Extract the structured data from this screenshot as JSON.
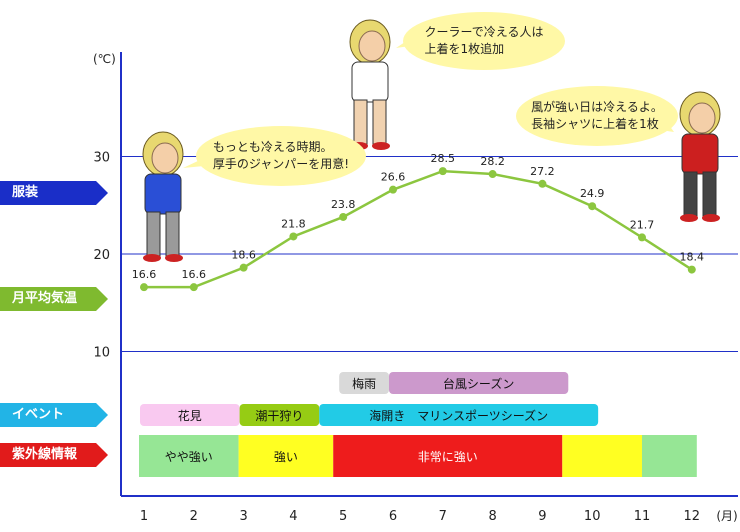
{
  "page": {
    "unit_temp": "(℃)",
    "unit_month": "(月)"
  },
  "row_labels": {
    "clothing": "服装",
    "avg_temp": "月平均気温",
    "event": "イベント",
    "uv": "紫外線情報"
  },
  "callouts": {
    "cold": "もっとも冷える時期。\n厚手のジャンパーを用意!",
    "cooler": "クーラーで冷える人は\n上着を1枚追加",
    "wind": "風が強い日は冷えるよ。\n長袖シャツに上着を1枚"
  },
  "chart_data": {
    "type": "line",
    "x": [
      1,
      2,
      3,
      4,
      5,
      6,
      7,
      8,
      9,
      10,
      11,
      12
    ],
    "values": [
      16.6,
      16.6,
      18.6,
      21.8,
      23.8,
      26.6,
      28.5,
      28.2,
      27.2,
      24.9,
      21.7,
      18.4
    ],
    "x_tick_labels": [
      "1",
      "2",
      "3",
      "4",
      "5",
      "6",
      "7",
      "8",
      "9",
      "10",
      "11",
      "12"
    ],
    "y_ticks": [
      10,
      20,
      30
    ],
    "ylim": [
      5,
      40
    ],
    "xlabel": "(月)",
    "ylabel": "(℃)",
    "grid": "horizontal lines at 10, 20, 30",
    "line_color": "#8cc63f",
    "point_color": "#8cc63f",
    "events": [
      {
        "label": "梅雨",
        "start": 5,
        "end": 6,
        "color": "#d9d9d9"
      },
      {
        "label": "台風シーズン",
        "start": 6,
        "end": 9.6,
        "color": "#cc99cc"
      },
      {
        "label": "花見",
        "start": 1,
        "end": 3,
        "color": "#f9c9f0"
      },
      {
        "label": "潮干狩り",
        "start": 3,
        "end": 4.6,
        "color": "#96cc14"
      },
      {
        "label": "海開き　マリンスポーツシーズン",
        "start": 4.6,
        "end": 10.2,
        "color": "#22cbe6"
      }
    ],
    "uv_levels": [
      {
        "label": "やや強い",
        "start": 1,
        "end": 3,
        "color": "#96e695"
      },
      {
        "label": "強い",
        "start": 3,
        "end": 4.9,
        "color": "#ffff22"
      },
      {
        "label": "非常に強い",
        "start": 4.9,
        "end": 9.5,
        "color": "#ee1c1c"
      },
      {
        "label": "",
        "start": 9.5,
        "end": 11.1,
        "color": "#ffff22"
      },
      {
        "label": "",
        "start": 11.1,
        "end": 12,
        "color": "#96e695"
      }
    ]
  }
}
